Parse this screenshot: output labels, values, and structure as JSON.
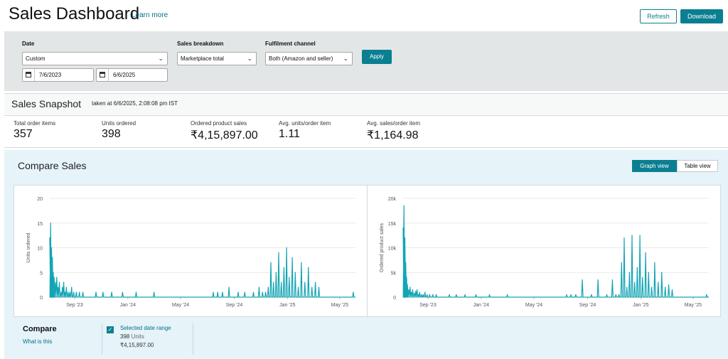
{
  "header": {
    "title": "Sales Dashboard",
    "learn_more": "Learn more",
    "refresh_label": "Refresh",
    "download_label": "Download"
  },
  "filters": {
    "date_label": "Date",
    "date_range_value": "Custom",
    "start_date": "7/6/2023",
    "end_date": "6/6/2025",
    "breakdown_label": "Sales breakdown",
    "breakdown_value": "Marketplace total",
    "channel_label": "Fulfilment channel",
    "channel_value": "Both (Amazon and seller)",
    "apply_label": "Apply"
  },
  "snapshot": {
    "title": "Sales Snapshot",
    "timestamp": "taken at 6/6/2025, 2:08:08 pm IST",
    "metrics": [
      {
        "label": "Total order items",
        "value": "357"
      },
      {
        "label": "Units ordered",
        "value": "398"
      },
      {
        "label": "Ordered product sales",
        "value": "₹4,15,897.00"
      },
      {
        "label": "Avg. units/order item",
        "value": "1.11"
      },
      {
        "label": "Avg. sales/order item",
        "value": "₹1,164.98"
      }
    ]
  },
  "compare": {
    "title": "Compare Sales",
    "graph_view_label": "Graph view",
    "table_view_label": "Table view",
    "compare_label": "Compare",
    "what_is_this": "What is this",
    "selected_range_label": "Selected date range",
    "units_value": "398",
    "units_word": "Units",
    "sales_value": "₹4,15,897.00",
    "accent_color": "#0a7f91",
    "line_color": "#12a5b4"
  },
  "chart_data": [
    {
      "type": "line",
      "title": "",
      "xlabel": "",
      "ylabel": "Units ordered",
      "ylim": [
        0,
        20
      ],
      "yticks": [
        "0",
        "5",
        "10",
        "15",
        "20"
      ],
      "xticks": [
        "Sep '23",
        "Jan '24",
        "May '24",
        "Sep '24",
        "Jan '25",
        "May '25"
      ],
      "grid": true,
      "series": [
        {
          "x": [
            "2023-07-06",
            "2023-07-08",
            "2023-07-10",
            "2023-07-12",
            "2023-07-14",
            "2023-07-16",
            "2023-07-19",
            "2023-07-22",
            "2023-07-25",
            "2023-07-28",
            "2023-08-01",
            "2023-08-04",
            "2023-08-07",
            "2023-08-10",
            "2023-08-13",
            "2023-08-17",
            "2023-08-21",
            "2023-08-25",
            "2023-08-30",
            "2023-09-05",
            "2023-09-12",
            "2023-09-20",
            "2023-10-20",
            "2023-11-05",
            "2023-11-25",
            "2023-12-20",
            "2024-01-20",
            "2024-03-01",
            "2024-07-15",
            "2024-07-25",
            "2024-08-05",
            "2024-08-20",
            "2024-09-10",
            "2024-09-25",
            "2024-10-15",
            "2024-10-28",
            "2024-11-05",
            "2024-11-12",
            "2024-11-18",
            "2024-11-24",
            "2024-11-30",
            "2024-12-06",
            "2024-12-12",
            "2024-12-18",
            "2024-12-24",
            "2024-12-30",
            "2025-01-05",
            "2025-01-12",
            "2025-01-19",
            "2025-01-26",
            "2025-02-02",
            "2025-02-10",
            "2025-02-18",
            "2025-02-26",
            "2025-03-06",
            "2025-03-14",
            "2025-06-01"
          ],
          "y": [
            12,
            15,
            10,
            8,
            5,
            4,
            3,
            4,
            2,
            3,
            1,
            2,
            3,
            1,
            2,
            1,
            1,
            2,
            1,
            1,
            1,
            1,
            1,
            1,
            1,
            1,
            1,
            1,
            1,
            1,
            1,
            2,
            1,
            1,
            1,
            2,
            1,
            1,
            2,
            7,
            3,
            5,
            9,
            3,
            6,
            10,
            4,
            8,
            5,
            2,
            7,
            3,
            6,
            2,
            3,
            2,
            1
          ]
        }
      ]
    },
    {
      "type": "line",
      "title": "",
      "xlabel": "",
      "ylabel": "Ordered product sales",
      "ylim": [
        0,
        20000
      ],
      "yticks": [
        "0",
        "5k",
        "10k",
        "15k",
        "20k"
      ],
      "xticks": [
        "Sep '23",
        "Jan '24",
        "May '24",
        "Sep '24",
        "Jan '25",
        "May '25"
      ],
      "grid": true,
      "series": [
        {
          "x": [
            "2023-07-06",
            "2023-07-08",
            "2023-07-10",
            "2023-07-12",
            "2023-07-14",
            "2023-07-16",
            "2023-07-19",
            "2023-07-22",
            "2023-07-25",
            "2023-07-28",
            "2023-08-01",
            "2023-08-04",
            "2023-08-07",
            "2023-08-10",
            "2023-08-13",
            "2023-08-17",
            "2023-08-21",
            "2023-08-25",
            "2023-08-30",
            "2023-09-05",
            "2023-09-12",
            "2023-09-20",
            "2023-10-20",
            "2023-11-05",
            "2023-11-25",
            "2023-12-20",
            "2024-01-20",
            "2024-03-01",
            "2024-07-15",
            "2024-07-25",
            "2024-08-05",
            "2024-08-20",
            "2024-09-10",
            "2024-09-25",
            "2024-10-15",
            "2024-10-28",
            "2024-11-05",
            "2024-11-12",
            "2024-11-18",
            "2024-11-24",
            "2024-11-30",
            "2024-12-06",
            "2024-12-12",
            "2024-12-18",
            "2024-12-24",
            "2024-12-30",
            "2025-01-05",
            "2025-01-12",
            "2025-01-19",
            "2025-01-26",
            "2025-02-02",
            "2025-02-10",
            "2025-02-18",
            "2025-02-26",
            "2025-03-06",
            "2025-03-14",
            "2025-06-01"
          ],
          "y": [
            14000,
            18500,
            12000,
            7000,
            4000,
            2500,
            1500,
            2000,
            1000,
            1500,
            800,
            1200,
            1500,
            500,
            1000,
            500,
            500,
            1000,
            500,
            500,
            500,
            500,
            500,
            500,
            500,
            500,
            500,
            500,
            500,
            500,
            500,
            3500,
            500,
            3500,
            500,
            3500,
            500,
            500,
            7000,
            12000,
            2000,
            5000,
            12500,
            3000,
            6000,
            12500,
            4000,
            9000,
            5000,
            2000,
            7000,
            3000,
            5000,
            2000,
            2500,
            1500,
            500
          ]
        }
      ]
    }
  ]
}
